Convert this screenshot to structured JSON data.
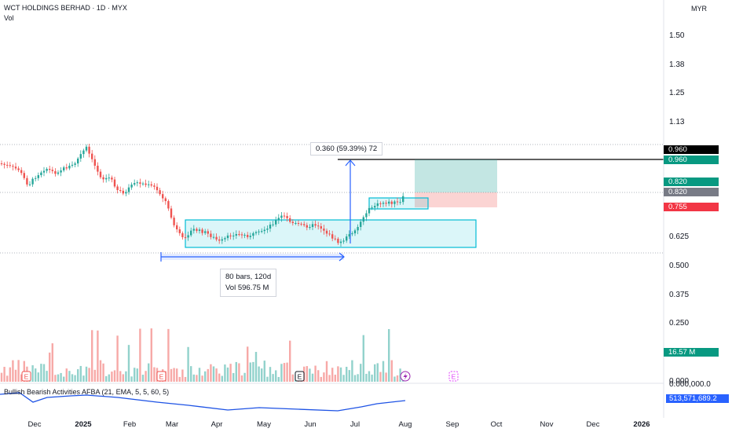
{
  "header": {
    "symbol_line": "WCT HOLDINGS BERHAD · 1D · MYX",
    "vol_label": "Vol"
  },
  "currency": "MYR",
  "price_axis_ticks": [
    "1.50",
    "1.38",
    "1.25",
    "1.13",
    "0.625",
    "0.500",
    "0.375",
    "0.250"
  ],
  "volume_axis_ticks": [
    "0.000",
    "0.000,000.0"
  ],
  "time_axis": [
    {
      "label": "Dec",
      "bold": false
    },
    {
      "label": "2025",
      "bold": true
    },
    {
      "label": "Feb",
      "bold": false
    },
    {
      "label": "Mar",
      "bold": false
    },
    {
      "label": "Apr",
      "bold": false
    },
    {
      "label": "May",
      "bold": false
    },
    {
      "label": "Jun",
      "bold": false
    },
    {
      "label": "Jul",
      "bold": false
    },
    {
      "label": "Aug",
      "bold": false
    },
    {
      "label": "Sep",
      "bold": false
    },
    {
      "label": "Oct",
      "bold": false
    },
    {
      "label": "Nov",
      "bold": false
    },
    {
      "label": "Dec",
      "bold": false
    },
    {
      "label": "2026",
      "bold": true
    }
  ],
  "price_tags": {
    "target_black": "0.960",
    "target_green": "0.960",
    "entry_green": "0.820",
    "entry_gray": "0.820",
    "stop_red": "0.755",
    "volume_green": "16.57 M",
    "indicator_blue": "513,571,689.2"
  },
  "measure_label": "0.360 (59.39%) 72",
  "range_info": {
    "bars": "80 bars, 120d",
    "vol": "Vol 596.75 M"
  },
  "indicator_title": "Bullish Bearish Activities AFBA (21, EMA, 5, 5, 60, 5)",
  "event_markers": [
    "E",
    "E",
    "E",
    "E"
  ],
  "colors": {
    "up": "#26a69a",
    "down": "#ef5350",
    "blue": "#2962ff",
    "indicator": "#1e53e5",
    "box": "#00bcd4"
  }
}
